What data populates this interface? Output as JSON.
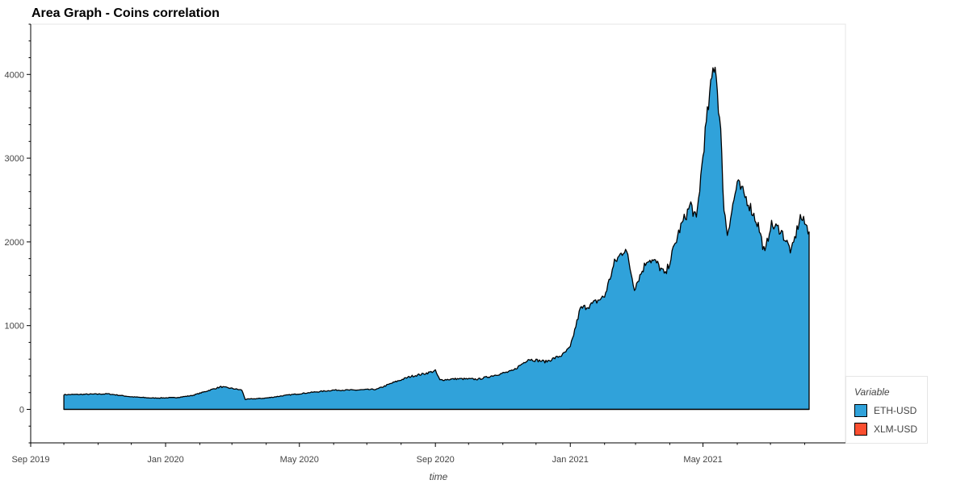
{
  "chart_data": {
    "type": "area",
    "title": "Area Graph - Coins correlation",
    "xlabel": "time",
    "ylabel": "",
    "x_ticks": [
      "Sep 2019",
      "Jan 2020",
      "May 2020",
      "Sep 2020",
      "Jan 2021",
      "May 2021"
    ],
    "x_range": [
      "2019-09-01",
      "2021-09-01"
    ],
    "y_ticks": [
      0,
      1000,
      2000,
      3000,
      4000
    ],
    "ylim": [
      -400,
      4600
    ],
    "grid": false,
    "legend": {
      "title": "Variable",
      "placement": "bottom-right-outside",
      "entries": [
        {
          "name": "ETH-USD",
          "color": "#30a2da"
        },
        {
          "name": "XLM-USD",
          "color": "#fc4f30"
        }
      ]
    },
    "series": [
      {
        "name": "ETH-USD",
        "color": "#30a2da",
        "points": [
          [
            "2019-10-01",
            175
          ],
          [
            "2019-10-20",
            180
          ],
          [
            "2019-11-10",
            185
          ],
          [
            "2019-12-01",
            150
          ],
          [
            "2019-12-20",
            135
          ],
          [
            "2020-01-10",
            140
          ],
          [
            "2020-01-25",
            165
          ],
          [
            "2020-02-10",
            230
          ],
          [
            "2020-02-20",
            270
          ],
          [
            "2020-03-01",
            250
          ],
          [
            "2020-03-10",
            230
          ],
          [
            "2020-03-13",
            120
          ],
          [
            "2020-04-01",
            135
          ],
          [
            "2020-04-20",
            170
          ],
          [
            "2020-05-10",
            200
          ],
          [
            "2020-06-01",
            230
          ],
          [
            "2020-06-20",
            230
          ],
          [
            "2020-07-10",
            240
          ],
          [
            "2020-07-25",
            320
          ],
          [
            "2020-08-10",
            395
          ],
          [
            "2020-08-20",
            420
          ],
          [
            "2020-09-01",
            460
          ],
          [
            "2020-09-05",
            350
          ],
          [
            "2020-09-20",
            365
          ],
          [
            "2020-10-10",
            360
          ],
          [
            "2020-10-25",
            410
          ],
          [
            "2020-11-10",
            460
          ],
          [
            "2020-11-24",
            600
          ],
          [
            "2020-12-10",
            570
          ],
          [
            "2020-12-25",
            650
          ],
          [
            "2021-01-01",
            740
          ],
          [
            "2021-01-10",
            1200
          ],
          [
            "2021-01-20",
            1250
          ],
          [
            "2021-02-01",
            1350
          ],
          [
            "2021-02-10",
            1750
          ],
          [
            "2021-02-20",
            1930
          ],
          [
            "2021-02-28",
            1450
          ],
          [
            "2021-03-12",
            1800
          ],
          [
            "2021-03-20",
            1750
          ],
          [
            "2021-03-28",
            1600
          ],
          [
            "2021-04-10",
            2150
          ],
          [
            "2021-04-20",
            2450
          ],
          [
            "2021-04-25",
            2250
          ],
          [
            "2021-05-03",
            3300
          ],
          [
            "2021-05-10",
            4050
          ],
          [
            "2021-05-12",
            4150
          ],
          [
            "2021-05-17",
            3300
          ],
          [
            "2021-05-20",
            2400
          ],
          [
            "2021-05-23",
            2100
          ],
          [
            "2021-06-01",
            2700
          ],
          [
            "2021-06-10",
            2500
          ],
          [
            "2021-06-20",
            2200
          ],
          [
            "2021-06-26",
            1850
          ],
          [
            "2021-07-01",
            2200
          ],
          [
            "2021-07-10",
            2150
          ],
          [
            "2021-07-20",
            1880
          ],
          [
            "2021-07-28",
            2300
          ],
          [
            "2021-08-02",
            2200
          ],
          [
            "2021-08-05",
            2120
          ]
        ]
      },
      {
        "name": "XLM-USD",
        "color": "#fc4f30",
        "points": [
          [
            "2019-10-01",
            0.06
          ],
          [
            "2020-03-13",
            0.04
          ],
          [
            "2020-07-25",
            0.1
          ],
          [
            "2021-01-10",
            0.3
          ],
          [
            "2021-05-12",
            0.7
          ],
          [
            "2021-08-05",
            0.3
          ]
        ]
      }
    ]
  }
}
